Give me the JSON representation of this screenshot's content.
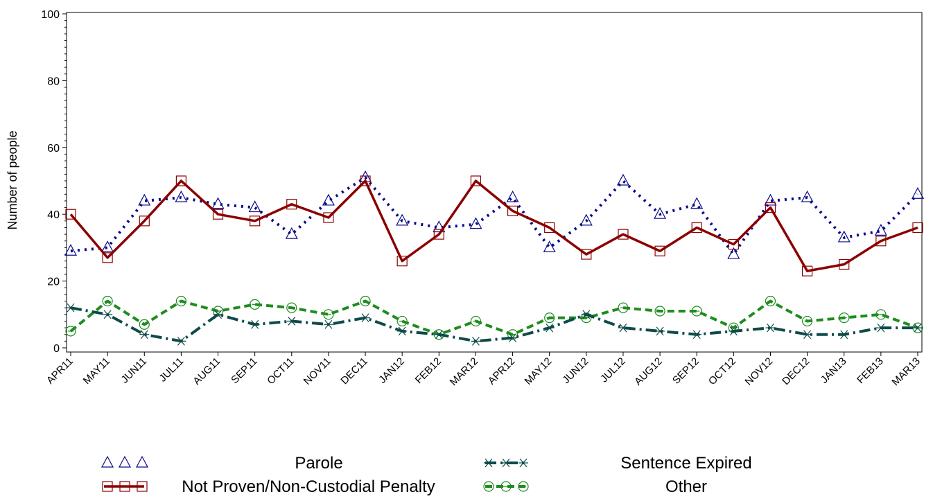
{
  "chart_data": {
    "type": "line",
    "title": "",
    "xlabel": "",
    "ylabel": "Number of people",
    "ylim": [
      0,
      100
    ],
    "yticks": [
      0,
      20,
      40,
      60,
      80,
      100
    ],
    "grid": false,
    "legend_position": "bottom",
    "categories": [
      "APR11",
      "MAY11",
      "JUN11",
      "JUL11",
      "AUG11",
      "SEP11",
      "OCT11",
      "NOV11",
      "DEC11",
      "JAN12",
      "FEB12",
      "MAR12",
      "APR12",
      "MAY12",
      "JUN12",
      "JUL12",
      "AUG12",
      "SEP12",
      "OCT12",
      "NOV12",
      "DEC12",
      "JAN13",
      "FEB13",
      "MAR13"
    ],
    "series": [
      {
        "name": "Parole",
        "color": "#0a0a8c",
        "marker": "triangle",
        "line": "dotted",
        "values": [
          29,
          30,
          44,
          45,
          43,
          42,
          34,
          44,
          51,
          38,
          36,
          37,
          45,
          30,
          38,
          50,
          40,
          43,
          28,
          44,
          45,
          33,
          35,
          46
        ]
      },
      {
        "name": "Not Proven/Non-Custodial Penalty",
        "color": "#8b0000",
        "marker": "square",
        "line": "solid",
        "values": [
          40,
          27,
          38,
          50,
          40,
          38,
          43,
          39,
          50,
          26,
          34,
          50,
          41,
          36,
          28,
          34,
          29,
          36,
          31,
          42,
          23,
          25,
          32,
          36
        ]
      },
      {
        "name": "Sentence Expired",
        "color": "#0f4a4a",
        "marker": "star",
        "line": "dashdot",
        "values": [
          12,
          10,
          4,
          2,
          10,
          7,
          8,
          7,
          9,
          5,
          4,
          2,
          3,
          6,
          10,
          6,
          5,
          4,
          5,
          6,
          4,
          4,
          6,
          6
        ]
      },
      {
        "name": "Other",
        "color": "#1e8c1e",
        "marker": "circle",
        "line": "dashed",
        "values": [
          5,
          14,
          7,
          14,
          11,
          13,
          12,
          10,
          14,
          8,
          4,
          8,
          4,
          9,
          9,
          12,
          11,
          11,
          6,
          14,
          8,
          9,
          10,
          6
        ]
      }
    ]
  }
}
